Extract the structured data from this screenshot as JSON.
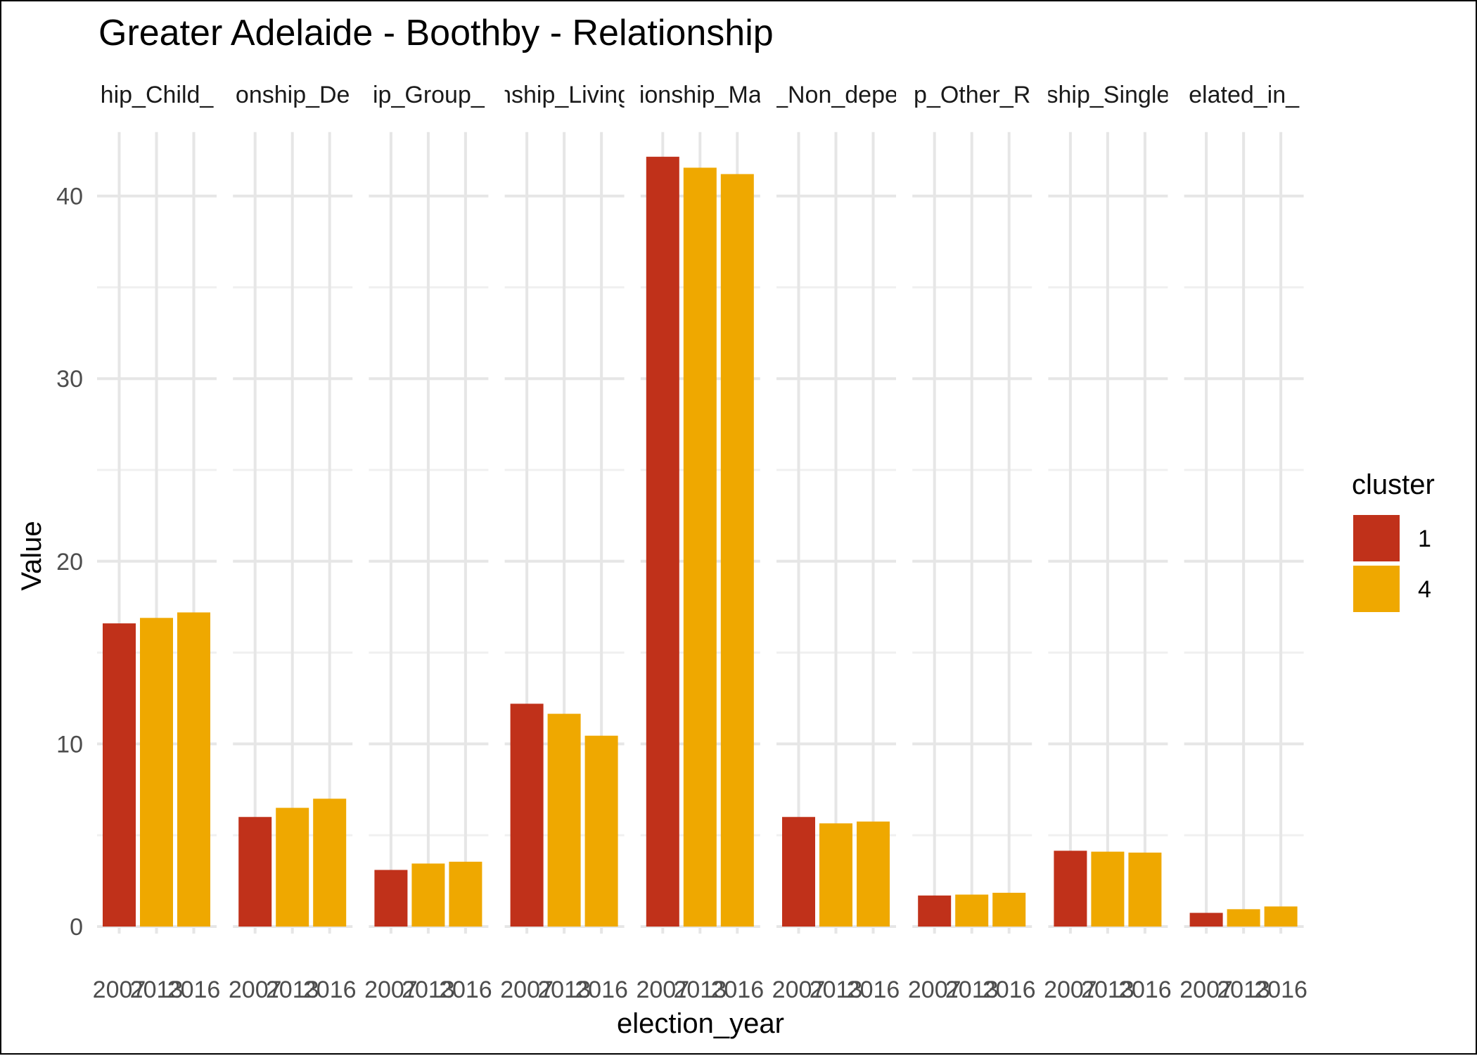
{
  "chart_data": {
    "type": "bar",
    "title": "Greater Adelaide - Boothby - Relationship",
    "xlabel": "election_year",
    "ylabel": "Value",
    "ylim": [
      0,
      43.5
    ],
    "y_ticks": [
      "0",
      "10",
      "20",
      "30",
      "40"
    ],
    "y_tick_values": [
      0,
      10,
      20,
      30,
      40
    ],
    "grid": true,
    "x_tick_labels": [
      "2007",
      "2013",
      "2016"
    ],
    "legend": {
      "title": "cluster",
      "position": "right",
      "entries": [
        {
          "label": "1",
          "color": "#C0311A"
        },
        {
          "label": "4",
          "color": "#EFA800"
        }
      ]
    },
    "facets": [
      {
        "label": "hip_Child_",
        "values": [
          16.6,
          16.9,
          17.2
        ],
        "clusters": [
          "1",
          "4",
          "4"
        ]
      },
      {
        "label": "onship_De",
        "values": [
          6.0,
          6.5,
          7.0
        ],
        "clusters": [
          "1",
          "4",
          "4"
        ]
      },
      {
        "label": "ip_Group_",
        "values": [
          3.1,
          3.45,
          3.55
        ],
        "clusters": [
          "1",
          "4",
          "4"
        ]
      },
      {
        "label": "nship_Living",
        "values": [
          12.2,
          11.65,
          10.45
        ],
        "clusters": [
          "1",
          "4",
          "4"
        ]
      },
      {
        "label": "ionship_Ma",
        "values": [
          42.15,
          41.55,
          41.2
        ],
        "clusters": [
          "1",
          "4",
          "4"
        ]
      },
      {
        "label": "_Non_depe",
        "values": [
          6.0,
          5.65,
          5.75
        ],
        "clusters": [
          "1",
          "4",
          "4"
        ]
      },
      {
        "label": "p_Other_R",
        "values": [
          1.7,
          1.75,
          1.85
        ],
        "clusters": [
          "1",
          "4",
          "4"
        ]
      },
      {
        "label": "ship_Single",
        "values": [
          4.15,
          4.1,
          4.05
        ],
        "clusters": [
          "1",
          "4",
          "4"
        ]
      },
      {
        "label": "elated_in_",
        "values": [
          0.75,
          0.95,
          1.1
        ],
        "clusters": [
          "1",
          "4",
          "4"
        ]
      }
    ]
  }
}
